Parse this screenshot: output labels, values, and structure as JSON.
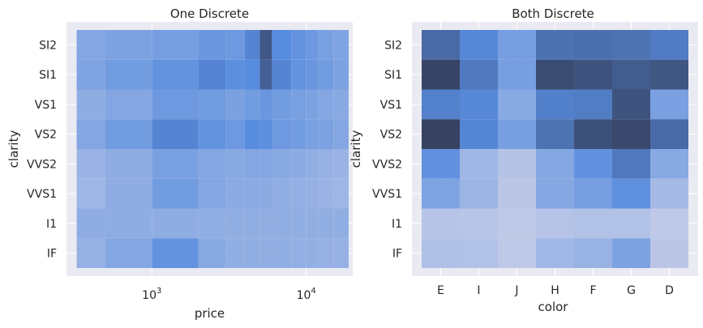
{
  "chart_data": [
    {
      "type": "heatmap",
      "title": "One Discrete",
      "xlabel": "price",
      "ylabel": "clarity",
      "x_scale": "log",
      "x_range": [
        280,
        20000
      ],
      "x_ticks": [
        {
          "value": 1000,
          "base": "10",
          "exp": "3"
        },
        {
          "value": 10000,
          "base": "10",
          "exp": "4"
        }
      ],
      "y_categories": [
        "SI2",
        "SI1",
        "VS1",
        "VS2",
        "VVS2",
        "VVS1",
        "I1",
        "IF"
      ],
      "x_bins": [
        326,
        500,
        1000,
        2000,
        3000,
        4000,
        5000,
        6000,
        8000,
        10000,
        12000,
        15000,
        18823
      ],
      "density": [
        [
          0.3,
          0.33,
          0.36,
          0.42,
          0.4,
          0.55,
          0.85,
          0.5,
          0.45,
          0.4,
          0.35,
          0.32
        ],
        [
          0.32,
          0.38,
          0.45,
          0.55,
          0.48,
          0.5,
          0.8,
          0.55,
          0.45,
          0.42,
          0.38,
          0.33
        ],
        [
          0.25,
          0.3,
          0.4,
          0.38,
          0.34,
          0.38,
          0.42,
          0.38,
          0.35,
          0.33,
          0.3,
          0.28
        ],
        [
          0.3,
          0.38,
          0.55,
          0.45,
          0.4,
          0.5,
          0.48,
          0.4,
          0.38,
          0.35,
          0.33,
          0.3
        ],
        [
          0.2,
          0.25,
          0.35,
          0.3,
          0.28,
          0.3,
          0.3,
          0.28,
          0.26,
          0.24,
          0.22,
          0.2
        ],
        [
          0.18,
          0.25,
          0.38,
          0.3,
          0.26,
          0.27,
          0.26,
          0.24,
          0.23,
          0.22,
          0.2,
          0.18
        ],
        [
          0.25,
          0.25,
          0.25,
          0.24,
          0.24,
          0.24,
          0.24,
          0.24,
          0.24,
          0.24,
          0.24,
          0.24
        ],
        [
          0.22,
          0.3,
          0.45,
          0.28,
          0.24,
          0.24,
          0.24,
          0.24,
          0.23,
          0.23,
          0.22,
          0.22
        ]
      ]
    },
    {
      "type": "heatmap",
      "title": "Both Discrete",
      "xlabel": "color",
      "ylabel": "clarity",
      "x_categories": [
        "E",
        "I",
        "J",
        "H",
        "F",
        "G",
        "D"
      ],
      "y_categories": [
        "SI2",
        "SI1",
        "VS1",
        "VS2",
        "VVS2",
        "VVS1",
        "I1",
        "IF"
      ],
      "counts": [
        [
          1713,
          1169,
          750,
          1563,
          1609,
          1548,
          1370
        ],
        [
          2426,
          1424,
          750,
          2275,
          2131,
          1976,
          2083
        ],
        [
          1281,
          1169,
          542,
          1304,
          1364,
          2148,
          705
        ],
        [
          2470,
          1204,
          731,
          1547,
          2201,
          2347,
          1697
        ],
        [
          991,
          315,
          131,
          585,
          975,
          1443,
          553
        ],
        [
          656,
          355,
          74,
          585,
          750,
          999,
          252
        ],
        [
          102,
          92,
          50,
          119,
          143,
          150,
          42
        ],
        [
          158,
          143,
          51,
          299,
          385,
          681,
          73
        ]
      ],
      "color_max": 2470
    }
  ]
}
